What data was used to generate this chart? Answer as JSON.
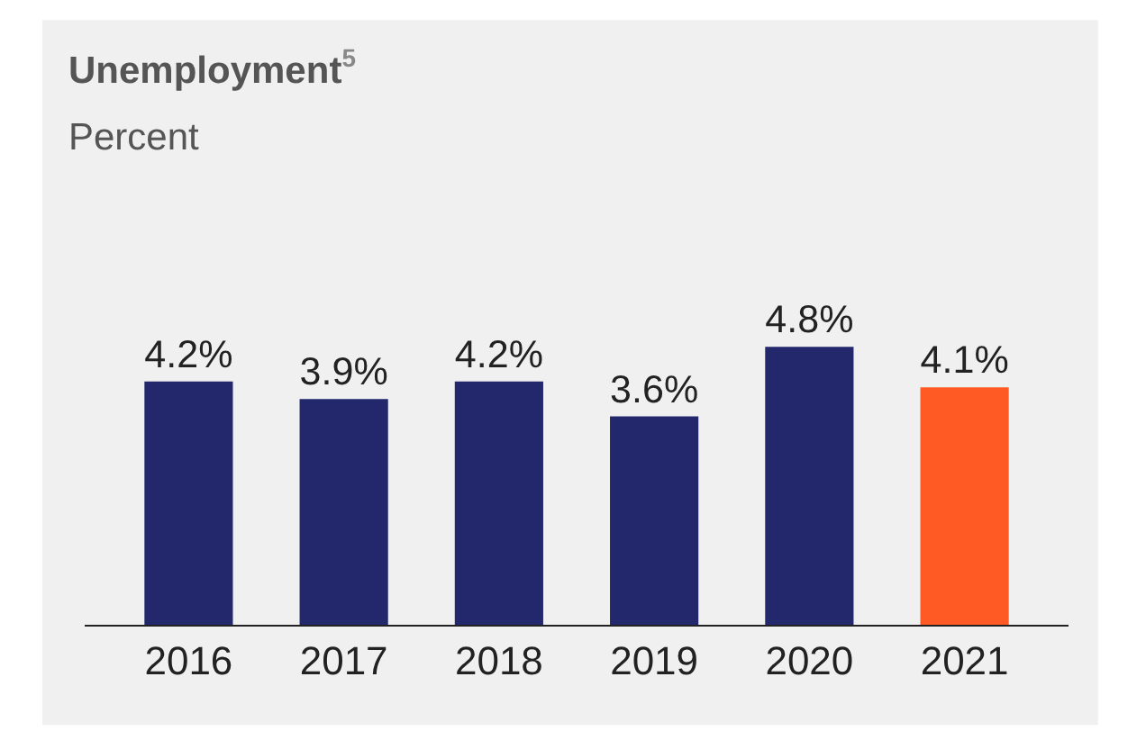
{
  "chart_data": {
    "type": "bar",
    "title": "Unemployment$^{5}$",
    "subtitle": "Percent",
    "categories": [
      "2016",
      "2017",
      "2018",
      "2019",
      "2020",
      "2021"
    ],
    "values": [
      4.2,
      3.9,
      4.2,
      3.6,
      4.8,
      4.1
    ],
    "value_labels": [
      "4.2%",
      "3.9%",
      "4.2%",
      "3.6%",
      "4.8%",
      "4.1%"
    ],
    "colors": [
      "#22286b",
      "#22286b",
      "#22286b",
      "#22286b",
      "#22286b",
      "#ff5a24"
    ],
    "grid": false,
    "legend": false
  }
}
